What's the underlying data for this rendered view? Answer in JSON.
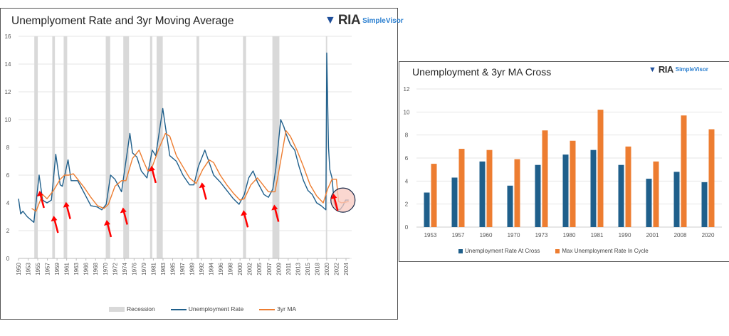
{
  "chart_data": [
    {
      "type": "line",
      "title": "Unemplyoment Rate and 3yr Moving Average",
      "logo": "RIA SimpleVisor",
      "ylim": [
        0,
        16
      ],
      "yticks": [
        0,
        2,
        4,
        6,
        8,
        10,
        12,
        14,
        16
      ],
      "xlim": [
        1950,
        2025.5
      ],
      "xtick_labels": [
        "1950",
        "1953",
        "1955",
        "1957",
        "1959",
        "1961",
        "1963",
        "1966",
        "1968",
        "1970",
        "1972",
        "1974",
        "1976",
        "1979",
        "1981",
        "1983",
        "1985",
        "1987",
        "1989",
        "1992",
        "1994",
        "1996",
        "1998",
        "2000",
        "2002",
        "2005",
        "2007",
        "2009",
        "2011",
        "2013",
        "2015",
        "2018",
        "2020",
        "2022",
        "2024"
      ],
      "grid": true,
      "legend_position": "bottom",
      "legend": [
        "Recession",
        "Unemployment Rate",
        "3yr MA"
      ],
      "colors": {
        "recession": "#d9d9d9",
        "unemployment": "#1f5f8b",
        "ma": "#ed7d31",
        "arrow": "#ff0000",
        "circle_fill": "#f8c9c0",
        "circle_stroke": "#1a2a4a"
      },
      "recessions": [
        [
          1953.6,
          1954.4
        ],
        [
          1957.7,
          1958.3
        ],
        [
          1960.3,
          1961.1
        ],
        [
          1969.9,
          1970.9
        ],
        [
          1973.9,
          1975.2
        ],
        [
          1980.0,
          1980.5
        ],
        [
          1981.5,
          1982.9
        ],
        [
          1990.6,
          1991.2
        ],
        [
          2001.2,
          2001.9
        ],
        [
          2007.9,
          2009.5
        ],
        [
          2020.1,
          2020.4
        ]
      ],
      "series": [
        {
          "name": "Unemployment Rate",
          "x": [
            1950.0,
            1950.5,
            1951.0,
            1952.0,
            1953.5,
            1954.7,
            1955.5,
            1956.5,
            1957.5,
            1958.5,
            1959.5,
            1960.0,
            1961.3,
            1962.0,
            1963.5,
            1964.5,
            1965.5,
            1966.5,
            1968.0,
            1969.0,
            1970.0,
            1971.0,
            1972.0,
            1973.5,
            1975.4,
            1976.0,
            1977.0,
            1978.0,
            1979.3,
            1980.5,
            1981.3,
            1982.9,
            1983.5,
            1984.5,
            1986.0,
            1987.5,
            1989.0,
            1990.0,
            1991.0,
            1992.5,
            1993.5,
            1994.5,
            1996.0,
            1997.5,
            1999.0,
            2000.3,
            2001.5,
            2002.5,
            2003.5,
            2004.5,
            2006.0,
            2007.0,
            2008.0,
            2008.7,
            2009.8,
            2010.5,
            2011.0,
            2012.0,
            2013.0,
            2014.0,
            2015.0,
            2016.0,
            2017.0,
            2018.0,
            2019.0,
            2020.1,
            2020.3,
            2020.7,
            2021.0,
            2021.5,
            2022.0,
            2022.5,
            2023.3,
            2024.0,
            2024.6,
            2025.3
          ],
          "y": [
            4.3,
            3.2,
            3.4,
            3.0,
            2.6,
            6.0,
            4.2,
            4.0,
            4.2,
            7.5,
            5.3,
            5.2,
            7.1,
            5.6,
            5.6,
            5.0,
            4.4,
            3.8,
            3.7,
            3.5,
            3.9,
            6.0,
            5.7,
            4.8,
            9.0,
            7.6,
            7.3,
            6.3,
            5.8,
            7.8,
            7.4,
            10.8,
            9.5,
            7.4,
            7.0,
            6.0,
            5.3,
            5.3,
            6.6,
            7.8,
            6.9,
            6.0,
            5.5,
            4.9,
            4.3,
            3.9,
            4.6,
            5.8,
            6.3,
            5.5,
            4.6,
            4.4,
            5.0,
            6.5,
            10.0,
            9.5,
            9.0,
            8.2,
            7.8,
            6.6,
            5.6,
            4.9,
            4.6,
            4.0,
            3.8,
            3.5,
            14.8,
            8.0,
            6.4,
            5.8,
            4.0,
            3.6,
            3.5,
            3.8,
            4.2,
            4.2
          ]
        },
        {
          "name": "3yr MA",
          "x": [
            1953.0,
            1954.0,
            1955.5,
            1956.5,
            1958.0,
            1959.5,
            1960.5,
            1961.5,
            1962.5,
            1963.5,
            1965.0,
            1966.5,
            1968.0,
            1969.5,
            1970.5,
            1972.0,
            1973.5,
            1974.5,
            1976.0,
            1977.5,
            1978.5,
            1979.5,
            1980.5,
            1982.0,
            1983.5,
            1984.5,
            1986.0,
            1987.5,
            1989.0,
            1990.5,
            1992.0,
            1993.5,
            1994.5,
            1996.0,
            1997.5,
            1999.0,
            2000.5,
            2001.5,
            2003.0,
            2004.5,
            2005.5,
            2007.0,
            2008.5,
            2009.5,
            2011.0,
            2012.0,
            2013.5,
            2015.0,
            2016.5,
            2018.0,
            2019.5,
            2020.5,
            2021.5,
            2022.5,
            2023.0,
            2023.7,
            2025.3
          ],
          "y": [
            3.6,
            3.4,
            4.6,
            4.3,
            4.9,
            5.7,
            6.0,
            6.0,
            6.1,
            5.7,
            5.1,
            4.4,
            3.8,
            3.6,
            3.9,
            5.2,
            5.6,
            5.6,
            7.2,
            7.8,
            7.0,
            6.3,
            6.6,
            7.9,
            9.0,
            8.8,
            7.4,
            6.6,
            5.8,
            5.4,
            6.4,
            7.1,
            6.9,
            6.0,
            5.3,
            4.7,
            4.2,
            4.3,
            5.3,
            5.8,
            5.4,
            4.8,
            4.8,
            6.5,
            9.2,
            8.8,
            7.8,
            6.6,
            5.3,
            4.5,
            4.0,
            5.0,
            5.7,
            5.7,
            4.1,
            4.0,
            4.1
          ]
        }
      ],
      "annotations": {
        "arrow_years": [
          1954.5,
          1957.7,
          1960.5,
          1969.8,
          1973.5,
          1980.0,
          1991.5,
          2001.0,
          2008.0,
          2021.5
        ],
        "circle_center": {
          "year": 2024.0,
          "value": 4.2
        }
      }
    },
    {
      "type": "bar",
      "title": "Unemployment & 3yr MA Cross",
      "logo": "RIA SimpleVisor",
      "categories": [
        "1953",
        "1957",
        "1960",
        "1970",
        "1973",
        "1980",
        "1981",
        "1990",
        "2001",
        "2008",
        "2020"
      ],
      "ylim": [
        0,
        12
      ],
      "yticks": [
        0,
        2,
        4,
        6,
        8,
        10,
        12
      ],
      "grid": true,
      "legend_position": "bottom",
      "series": [
        {
          "name": "Unemployment Rate At Cross",
          "color": "#1f5f8b",
          "values": [
            3.0,
            4.3,
            5.7,
            3.6,
            5.4,
            6.3,
            6.7,
            5.4,
            4.2,
            4.8,
            3.9
          ]
        },
        {
          "name": "Max Unemployment Rate In Cycle",
          "color": "#ed7d31",
          "values": [
            5.5,
            6.8,
            6.7,
            5.9,
            8.4,
            7.5,
            10.2,
            7.0,
            5.7,
            9.7,
            8.5
          ]
        }
      ]
    }
  ]
}
